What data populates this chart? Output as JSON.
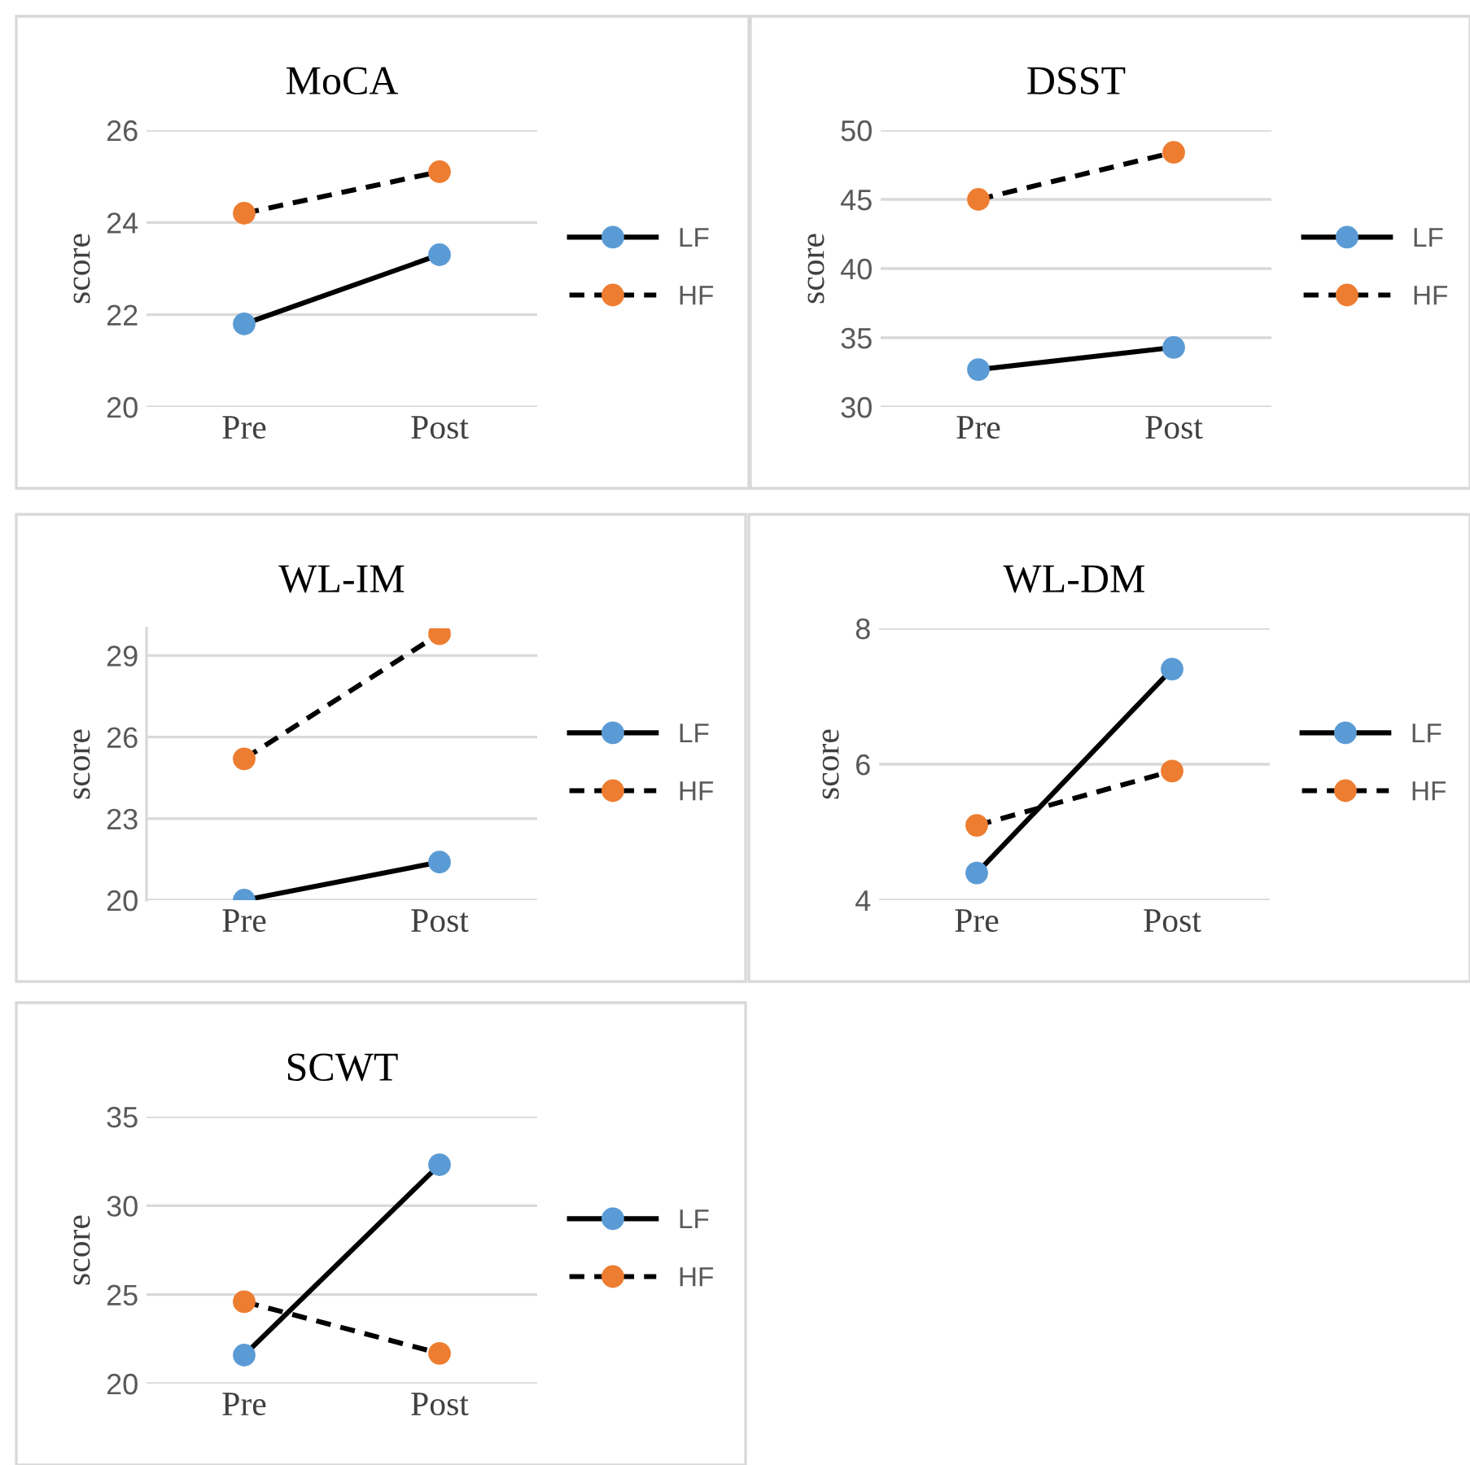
{
  "chart_data": [
    {
      "type": "line",
      "title": "MoCA",
      "ylabel": "score",
      "categories": [
        "Pre",
        "Post"
      ],
      "ylim": [
        20,
        26
      ],
      "yticks": [
        20,
        22,
        24,
        26
      ],
      "grid": "y",
      "legend": "right",
      "marker": "circle",
      "series": [
        {
          "name": "LF",
          "color": "#5b9bd5",
          "line_style": "solid",
          "values": [
            21.8,
            23.3
          ]
        },
        {
          "name": "HF",
          "color": "#ed7d31",
          "line_style": "dashed",
          "values": [
            24.2,
            25.1
          ]
        }
      ]
    },
    {
      "type": "line",
      "title": "DSST",
      "ylabel": "score",
      "categories": [
        "Pre",
        "Post"
      ],
      "ylim": [
        30,
        50
      ],
      "yticks": [
        30,
        35,
        40,
        45,
        50
      ],
      "grid": "y",
      "legend": "right",
      "marker": "circle",
      "series": [
        {
          "name": "LF",
          "color": "#5b9bd5",
          "line_style": "solid",
          "values": [
            32.7,
            34.3
          ]
        },
        {
          "name": "HF",
          "color": "#ed7d31",
          "line_style": "dashed",
          "values": [
            45.0,
            48.4
          ]
        }
      ]
    },
    {
      "type": "line",
      "title": "WL-IM",
      "ylabel": "score",
      "categories": [
        "Pre",
        "Post"
      ],
      "ylim": [
        20,
        30
      ],
      "yticks": [
        20,
        23,
        26,
        29
      ],
      "grid": "y",
      "legend": "right",
      "marker": "circle",
      "series": [
        {
          "name": "LF",
          "color": "#5b9bd5",
          "line_style": "solid",
          "values": [
            20.0,
            21.4
          ]
        },
        {
          "name": "HF",
          "color": "#ed7d31",
          "line_style": "dashed",
          "values": [
            25.2,
            29.8
          ]
        }
      ]
    },
    {
      "type": "line",
      "title": "WL-DM",
      "ylabel": "score",
      "categories": [
        "Pre",
        "Post"
      ],
      "ylim": [
        4,
        8
      ],
      "yticks": [
        4,
        6,
        8
      ],
      "grid": "y",
      "legend": "right",
      "marker": "circle",
      "series": [
        {
          "name": "LF",
          "color": "#5b9bd5",
          "line_style": "solid",
          "values": [
            4.4,
            7.4
          ]
        },
        {
          "name": "HF",
          "color": "#ed7d31",
          "line_style": "dashed",
          "values": [
            5.1,
            5.9
          ]
        }
      ]
    },
    {
      "type": "line",
      "title": "SCWT",
      "ylabel": "score",
      "categories": [
        "Pre",
        "Post"
      ],
      "ylim": [
        20,
        35
      ],
      "yticks": [
        20,
        25,
        30,
        35
      ],
      "grid": "y",
      "legend": "right",
      "marker": "circle",
      "series": [
        {
          "name": "LF",
          "color": "#5b9bd5",
          "line_style": "solid",
          "values": [
            21.6,
            32.3
          ]
        },
        {
          "name": "HF",
          "color": "#ed7d31",
          "line_style": "dashed",
          "values": [
            24.6,
            21.7
          ]
        }
      ]
    }
  ]
}
